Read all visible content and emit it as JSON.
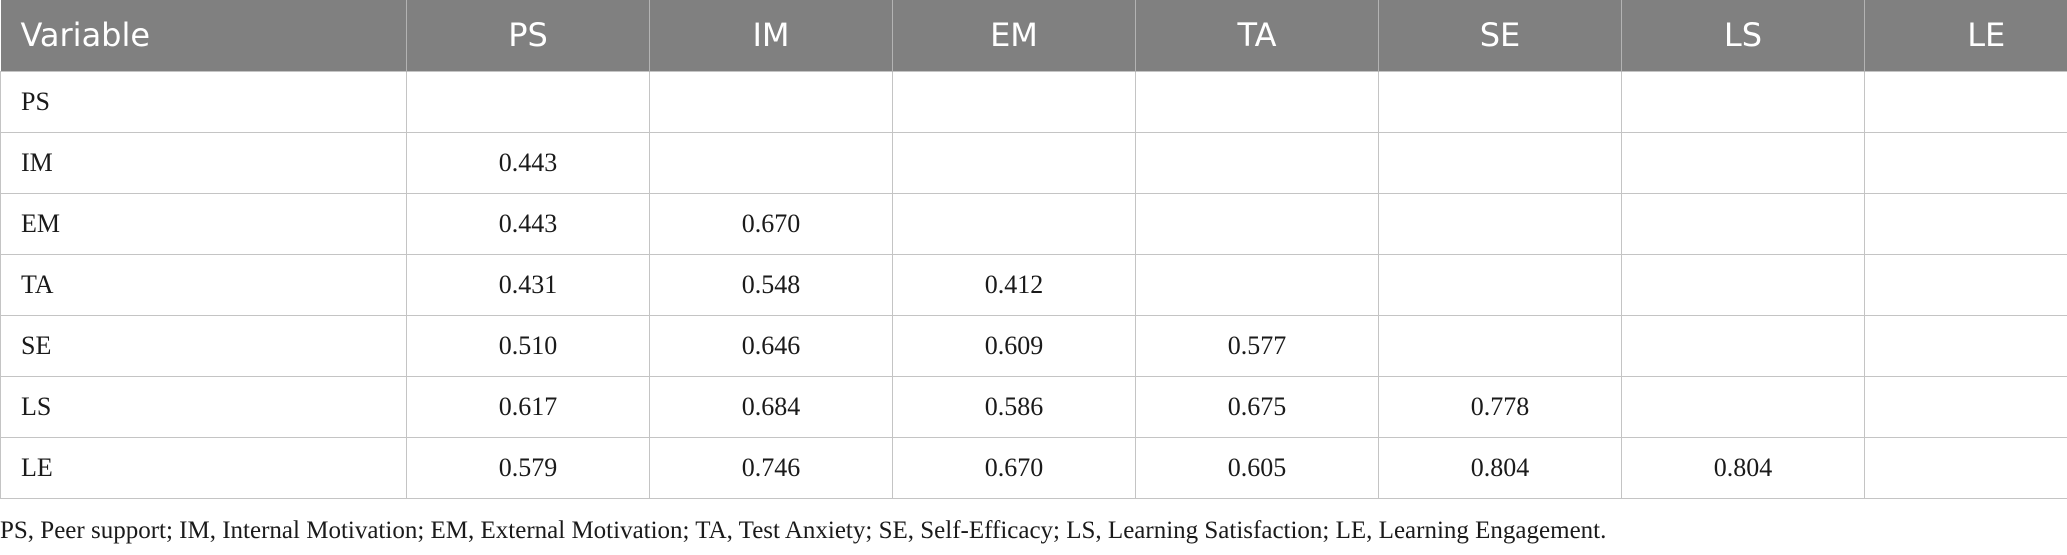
{
  "table": {
    "columns": [
      "Variable",
      "PS",
      "IM",
      "EM",
      "TA",
      "SE",
      "LS",
      "LE"
    ],
    "rows": [
      [
        "PS",
        "",
        "",
        "",
        "",
        "",
        "",
        ""
      ],
      [
        "IM",
        "0.443",
        "",
        "",
        "",
        "",
        "",
        ""
      ],
      [
        "EM",
        "0.443",
        "0.670",
        "",
        "",
        "",
        "",
        ""
      ],
      [
        "TA",
        "0.431",
        "0.548",
        "0.412",
        "",
        "",
        "",
        ""
      ],
      [
        "SE",
        "0.510",
        "0.646",
        "0.609",
        "0.577",
        "",
        "",
        ""
      ],
      [
        "LS",
        "0.617",
        "0.684",
        "0.586",
        "0.675",
        "0.778",
        "",
        ""
      ],
      [
        "LE",
        "0.579",
        "0.746",
        "0.670",
        "0.605",
        "0.804",
        "0.804",
        ""
      ]
    ]
  },
  "footnote": "PS, Peer support; IM, Internal Motivation; EM, External Motivation; TA, Test Anxiety; SE, Self-Efficacy; LS, Learning Satisfaction; LE, Learning Engagement.",
  "colors": {
    "header_bg": "#808080",
    "header_text": "#ffffff",
    "grid": "#c4c4c4"
  }
}
